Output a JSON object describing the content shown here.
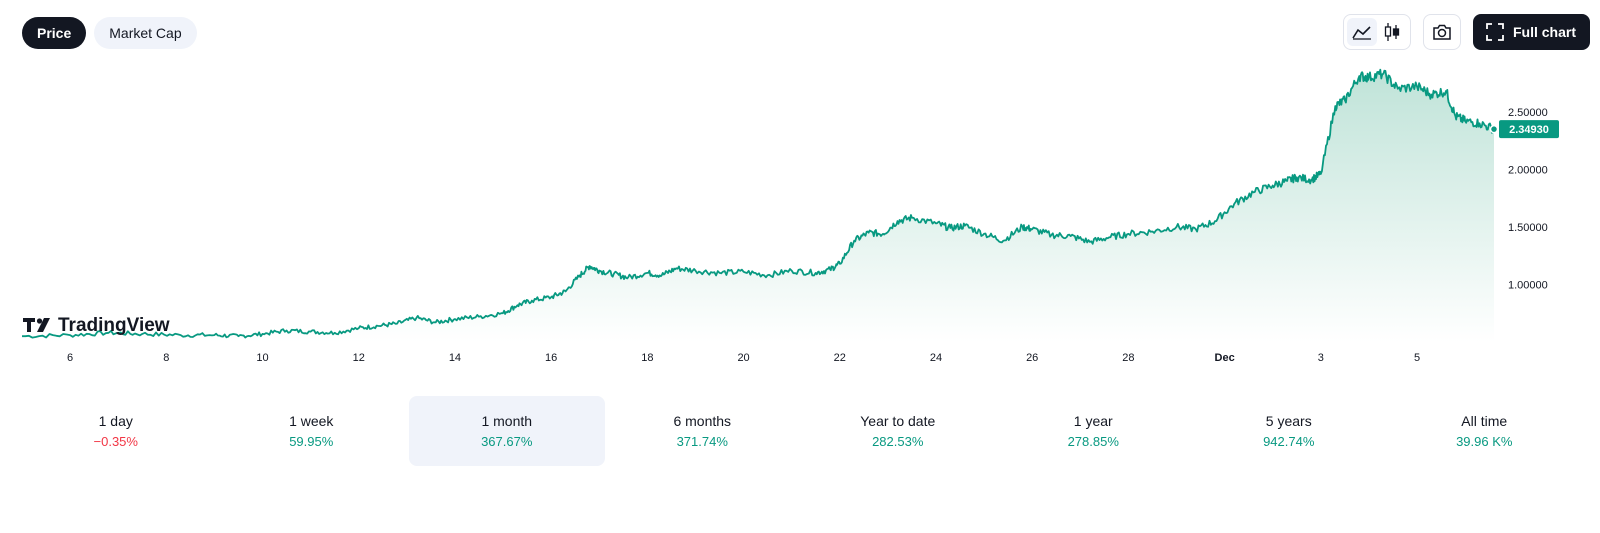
{
  "tabs": [
    {
      "label": "Price",
      "active": true
    },
    {
      "label": "Market Cap",
      "active": false
    }
  ],
  "toolbar": {
    "line_icon": "line-chart-icon",
    "candle_icon": "candlestick-icon",
    "camera_icon": "camera-icon",
    "fullscreen_icon": "fullscreen-icon",
    "full_chart_label": "Full chart"
  },
  "logo": {
    "text": "TradingView"
  },
  "colors": {
    "line": "#089981",
    "fill_top": "#bfe3d8",
    "fill_bottom": "#ffffff",
    "up": "#089981",
    "down": "#f23645",
    "badge": "#089981"
  },
  "chart_data": {
    "type": "area",
    "x_tick_labels": [
      "6",
      "8",
      "10",
      "12",
      "14",
      "16",
      "18",
      "20",
      "22",
      "24",
      "26",
      "28",
      "Dec",
      "3",
      "5"
    ],
    "x_tick_days": [
      6,
      8,
      10,
      12,
      14,
      16,
      18,
      20,
      22,
      24,
      26,
      28,
      30,
      32,
      34
    ],
    "y_tick_values": [
      1.0,
      1.5,
      2.0,
      2.5
    ],
    "y_tick_labels": [
      "1.00000",
      "1.50000",
      "2.00000",
      "2.50000"
    ],
    "ylim": [
      0.5,
      2.95
    ],
    "xlim": [
      5.0,
      35.6
    ],
    "last_price_label": "2.34930",
    "last_price": 2.3493,
    "series": [
      {
        "x": [
          5.0,
          6.0,
          6.8,
          7.5,
          8.3,
          9.0,
          9.5,
          10.0,
          10.5,
          11.0,
          11.5,
          12.0,
          12.4,
          12.8,
          13.2,
          13.6,
          14.0,
          14.5,
          15.0,
          15.3,
          15.6,
          16.0,
          16.3,
          16.6,
          16.8,
          17.0,
          17.3,
          17.6,
          18.0,
          18.3,
          18.6,
          19.0,
          19.5,
          20.0,
          20.5,
          21.0,
          21.5,
          21.8,
          22.0,
          22.3,
          22.6,
          22.9,
          23.2,
          23.5,
          24.0,
          24.3,
          24.6,
          25.0,
          25.4,
          25.8,
          26.0,
          26.4,
          26.8,
          27.2,
          27.6,
          28.0,
          28.5,
          29.0,
          29.4,
          29.8,
          30.2,
          30.6,
          31.0,
          31.3,
          31.5,
          31.8,
          32.0,
          32.3,
          32.5,
          32.8,
          33.0,
          33.3,
          33.6,
          34.0,
          34.3,
          34.6,
          34.8,
          35.0,
          35.3,
          35.6
        ],
        "y": [
          0.55,
          0.56,
          0.58,
          0.57,
          0.56,
          0.56,
          0.55,
          0.57,
          0.6,
          0.59,
          0.58,
          0.62,
          0.64,
          0.66,
          0.71,
          0.67,
          0.7,
          0.72,
          0.75,
          0.82,
          0.86,
          0.89,
          0.94,
          1.08,
          1.16,
          1.12,
          1.09,
          1.06,
          1.1,
          1.08,
          1.14,
          1.12,
          1.1,
          1.11,
          1.08,
          1.12,
          1.1,
          1.13,
          1.18,
          1.38,
          1.45,
          1.44,
          1.55,
          1.58,
          1.53,
          1.49,
          1.51,
          1.44,
          1.38,
          1.5,
          1.48,
          1.43,
          1.42,
          1.37,
          1.41,
          1.44,
          1.46,
          1.5,
          1.48,
          1.55,
          1.7,
          1.8,
          1.86,
          1.9,
          1.93,
          1.91,
          1.96,
          2.55,
          2.6,
          2.81,
          2.8,
          2.83,
          2.7,
          2.72,
          2.65,
          2.68,
          2.46,
          2.42,
          2.4,
          2.35
        ]
      }
    ]
  },
  "periods": [
    {
      "label": "1 day",
      "value": "−0.35%",
      "dir": "down",
      "active": false
    },
    {
      "label": "1 week",
      "value": "59.95%",
      "dir": "up",
      "active": false
    },
    {
      "label": "1 month",
      "value": "367.67%",
      "dir": "up",
      "active": true
    },
    {
      "label": "6 months",
      "value": "371.74%",
      "dir": "up",
      "active": false
    },
    {
      "label": "Year to date",
      "value": "282.53%",
      "dir": "up",
      "active": false
    },
    {
      "label": "1 year",
      "value": "278.85%",
      "dir": "up",
      "active": false
    },
    {
      "label": "5 years",
      "value": "942.74%",
      "dir": "up",
      "active": false
    },
    {
      "label": "All time",
      "value": "39.96 K%",
      "dir": "up",
      "active": false
    }
  ]
}
